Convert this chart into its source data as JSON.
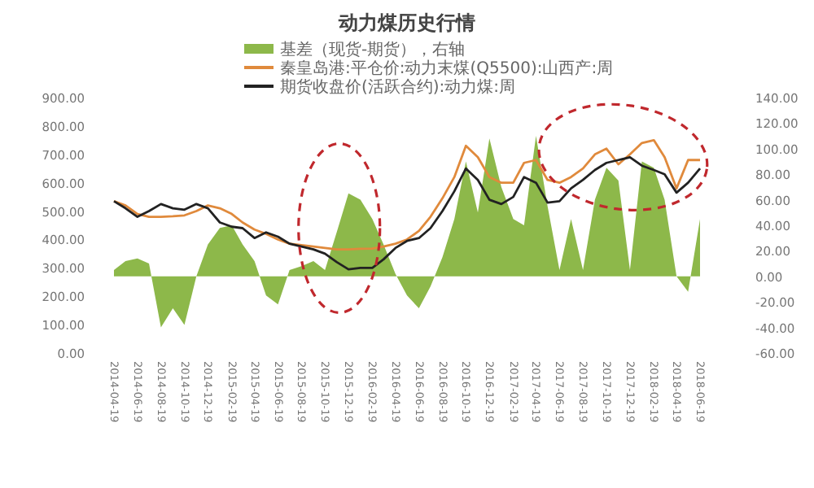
{
  "chart_data": {
    "type": "line",
    "title": "动力煤历史行情",
    "x": [
      "2014-04-19",
      "2014-05-19",
      "2014-06-19",
      "2014-07-19",
      "2014-08-19",
      "2014-09-19",
      "2014-10-19",
      "2014-11-19",
      "2014-12-19",
      "2015-01-19",
      "2015-02-19",
      "2015-03-19",
      "2015-04-19",
      "2015-05-19",
      "2015-06-19",
      "2015-07-19",
      "2015-08-19",
      "2015-09-19",
      "2015-10-19",
      "2015-11-19",
      "2015-12-19",
      "2016-01-19",
      "2016-02-19",
      "2016-03-19",
      "2016-04-19",
      "2016-05-19",
      "2016-06-19",
      "2016-07-19",
      "2016-08-19",
      "2016-09-19",
      "2016-10-19",
      "2016-11-19",
      "2016-12-19",
      "2017-01-19",
      "2017-02-19",
      "2017-03-19",
      "2017-04-19",
      "2017-05-19",
      "2017-06-19",
      "2017-07-19",
      "2017-08-19",
      "2017-09-19",
      "2017-10-19",
      "2017-11-19",
      "2017-12-19",
      "2018-01-19",
      "2018-02-19",
      "2018-03-19",
      "2018-04-19",
      "2018-05-19",
      "2018-06-19"
    ],
    "series": [
      {
        "name": "基差（现货-期货），右轴",
        "type": "area",
        "axis": "y2",
        "color": "#8db84a",
        "values": [
          5,
          12,
          14,
          10,
          -40,
          -25,
          -38,
          0,
          25,
          38,
          40,
          25,
          12,
          -15,
          -22,
          5,
          8,
          12,
          5,
          35,
          65,
          60,
          45,
          25,
          2,
          -15,
          -25,
          -8,
          15,
          45,
          90,
          50,
          108,
          70,
          45,
          40,
          110,
          55,
          5,
          45,
          5,
          60,
          85,
          75,
          5,
          90,
          85,
          60,
          0,
          -12,
          45
        ]
      },
      {
        "name": "秦皇岛港:平仓价:动力末煤(Q5500):山西产:周",
        "color": "#e08a3c",
        "values": [
          535,
          520,
          490,
          480,
          480,
          482,
          485,
          500,
          520,
          510,
          490,
          460,
          435,
          420,
          400,
          385,
          380,
          375,
          370,
          365,
          365,
          367,
          368,
          375,
          385,
          400,
          430,
          480,
          545,
          620,
          730,
          690,
          620,
          600,
          600,
          670,
          680,
          610,
          600,
          620,
          650,
          700,
          720,
          665,
          700,
          740,
          750,
          690,
          580,
          680,
          680
        ]
      },
      {
        "name": "期货收盘价(活跃合约):动力煤:周",
        "color": "#222222",
        "values": [
          535,
          510,
          480,
          500,
          525,
          510,
          505,
          525,
          510,
          460,
          445,
          440,
          405,
          425,
          410,
          385,
          375,
          365,
          350,
          320,
          295,
          300,
          300,
          330,
          370,
          395,
          405,
          440,
          500,
          570,
          650,
          610,
          540,
          525,
          550,
          620,
          600,
          530,
          535,
          580,
          610,
          645,
          670,
          680,
          690,
          660,
          645,
          630,
          565,
          600,
          650
        ]
      }
    ],
    "xlim": [
      "2014-04-19",
      "2018-06-19"
    ],
    "xticks": [
      "2014-04-19",
      "2014-06-19",
      "2014-08-19",
      "2014-10-19",
      "2014-12-19",
      "2015-02-19",
      "2015-04-19",
      "2015-06-19",
      "2015-08-19",
      "2015-10-19",
      "2015-12-19",
      "2016-02-19",
      "2016-04-19",
      "2016-06-19",
      "2016-08-19",
      "2016-10-19",
      "2016-12-19",
      "2017-02-19",
      "2017-04-19",
      "2017-06-19",
      "2017-08-19",
      "2017-10-19",
      "2017-12-19",
      "2018-02-19",
      "2018-04-19",
      "2018-06-19"
    ],
    "ylim": [
      0,
      900
    ],
    "yticks": [
      {
        "value": 0,
        "label": "0.00"
      },
      {
        "value": 100,
        "label": "100.00"
      },
      {
        "value": 200,
        "label": "200.00"
      },
      {
        "value": 300,
        "label": "300.00"
      },
      {
        "value": 400,
        "label": "400.00"
      },
      {
        "value": 500,
        "label": "500.00"
      },
      {
        "value": 600,
        "label": "600.00"
      },
      {
        "value": 700,
        "label": "700.00"
      },
      {
        "value": 800,
        "label": "800.00"
      },
      {
        "value": 900,
        "label": "900.00"
      }
    ],
    "y2lim": [
      -60,
      140
    ],
    "y2ticks": [
      {
        "value": -60,
        "label": "-60.00"
      },
      {
        "value": -40,
        "label": "-40.00"
      },
      {
        "value": -20,
        "label": "-20.00"
      },
      {
        "value": 0,
        "label": "0.00"
      },
      {
        "value": 20,
        "label": "20.00"
      },
      {
        "value": 40,
        "label": "40.00"
      },
      {
        "value": 60,
        "label": "60.00"
      },
      {
        "value": 80,
        "label": "80.00"
      },
      {
        "value": 100,
        "label": "100.00"
      },
      {
        "value": 120,
        "label": "120.00"
      },
      {
        "value": 140,
        "label": "140.00"
      }
    ],
    "legend": "top",
    "grid": false
  }
}
